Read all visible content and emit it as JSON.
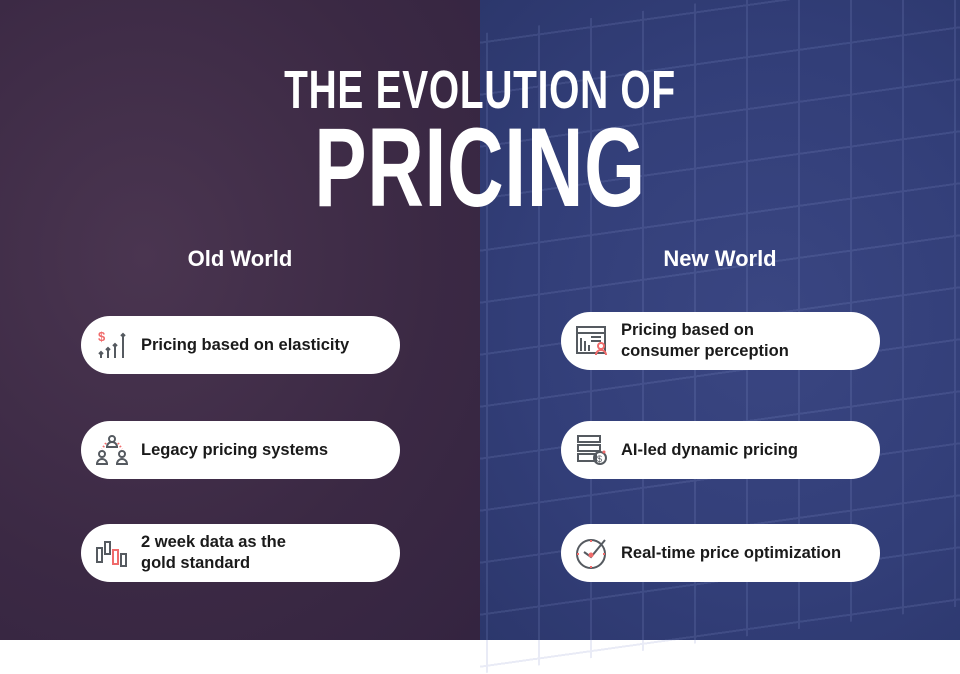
{
  "title": {
    "line1": "THE EVOLUTION OF",
    "line2": "PRICING"
  },
  "colors": {
    "old_bg": "#3b2944",
    "new_bg": "#323e78",
    "accent": "#f06b6b",
    "icon": "#555a60"
  },
  "old_world": {
    "heading": "Old World",
    "items": [
      {
        "label": "Pricing based on elasticity",
        "icon": "dollar-arrows-up-icon"
      },
      {
        "label": "Legacy pricing systems",
        "icon": "people-hierarchy-icon"
      },
      {
        "label": "2 week data as the\ngold standard",
        "icon": "candlestick-chart-icon"
      }
    ]
  },
  "new_world": {
    "heading": "New World",
    "items": [
      {
        "label": "Pricing based on\nconsumer perception",
        "icon": "report-user-icon"
      },
      {
        "label": "AI-led dynamic pricing",
        "icon": "coin-stack-dollar-icon"
      },
      {
        "label": "Real-time price optimization",
        "icon": "clock-check-icon"
      }
    ]
  }
}
